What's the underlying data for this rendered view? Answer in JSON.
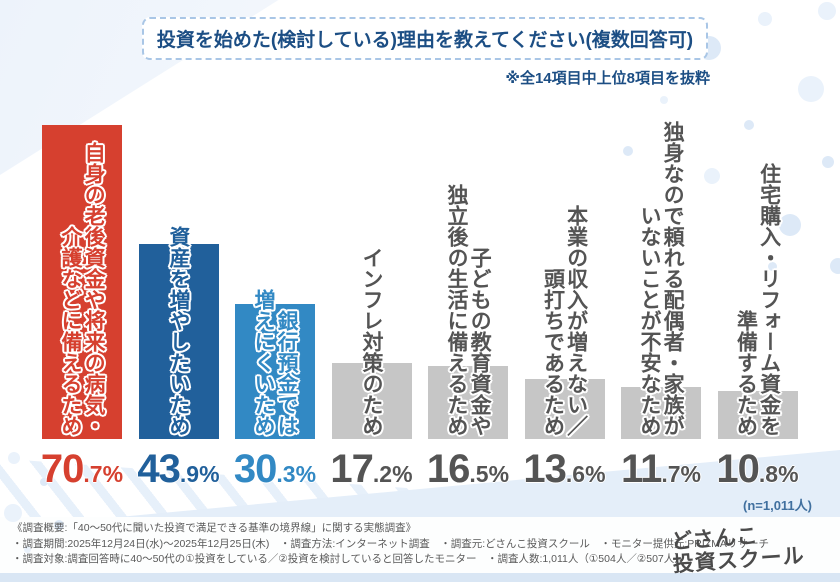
{
  "title": "投資を始めた(検討している)理由を教えてください(複数回答可)",
  "note": "※全14項目中上位8項目を抜粋",
  "sample_size_label": "(n=1,011人)",
  "chart_data": {
    "type": "bar",
    "title": "投資を始めた(検討している)理由を教えてください(複数回答可)",
    "subtitle": "※全14項目中上位8項目を抜粋",
    "categories": [
      "自身の老後資金や将来の病気・介護などに備えるため",
      "資産を増やしたいため",
      "銀行預金では増えにくいため",
      "インフレ対策のため",
      "子どもの教育資金や独立後の生活に備えるため",
      "本業の収入が増えない／頭打ちであるため",
      "独身なので頼れる配偶者・家族がいないことが不安なため",
      "住宅購入・リフォーム資金を準備するため"
    ],
    "label_lines": [
      [
        "自身の老後資金や将来の病気・",
        "介護などに備えるため"
      ],
      [
        "資産を増やしたいため"
      ],
      [
        "銀行預金では",
        "増えにくいため"
      ],
      [
        "インフレ対策のため"
      ],
      [
        "子どもの教育資金や",
        "独立後の生活に備えるため"
      ],
      [
        "本業の収入が増えない／",
        "頭打ちであるため"
      ],
      [
        "独身なので頼れる配偶者・家族が",
        "いないことが不安なため"
      ],
      [
        "住宅購入・リフォーム資金を",
        "準備するため"
      ]
    ],
    "values": [
      70.7,
      43.9,
      30.3,
      17.2,
      16.5,
      13.6,
      11.7,
      10.8
    ],
    "unit": "%",
    "bar_colors": [
      "#d6402f",
      "#21609b",
      "#3289c4",
      "#c6c6c6",
      "#c6c6c6",
      "#c6c6c6",
      "#c6c6c6",
      "#c6c6c6"
    ],
    "text_colors": [
      "#d6402f",
      "#21609b",
      "#3289c4",
      "#545454",
      "#545454",
      "#545454",
      "#545454",
      "#545454"
    ],
    "ylim": [
      0,
      75
    ],
    "grid": false,
    "legend": false,
    "sample_size": "(n=1,011人)"
  },
  "footer": {
    "line1": "《調査概要:「40〜50代に聞いた投資で満足できる基準の境界線」に関する実態調査》",
    "line2": "・調査期間:2025年12月24日(水)〜2025年12月25日(木)　・調査方法:インターネット調査　・調査元:どさんこ投資スクール　・モニター提供元:PRIZMAリサーチ",
    "line3": "・調査対象:調査回答時に40〜50代の①投資をしている／②投資を検討していると回答したモニター　・調査人数:1,011人（①504人／②507人）"
  },
  "logo": {
    "line1": "どさんこ",
    "line2": "投資スクール"
  }
}
